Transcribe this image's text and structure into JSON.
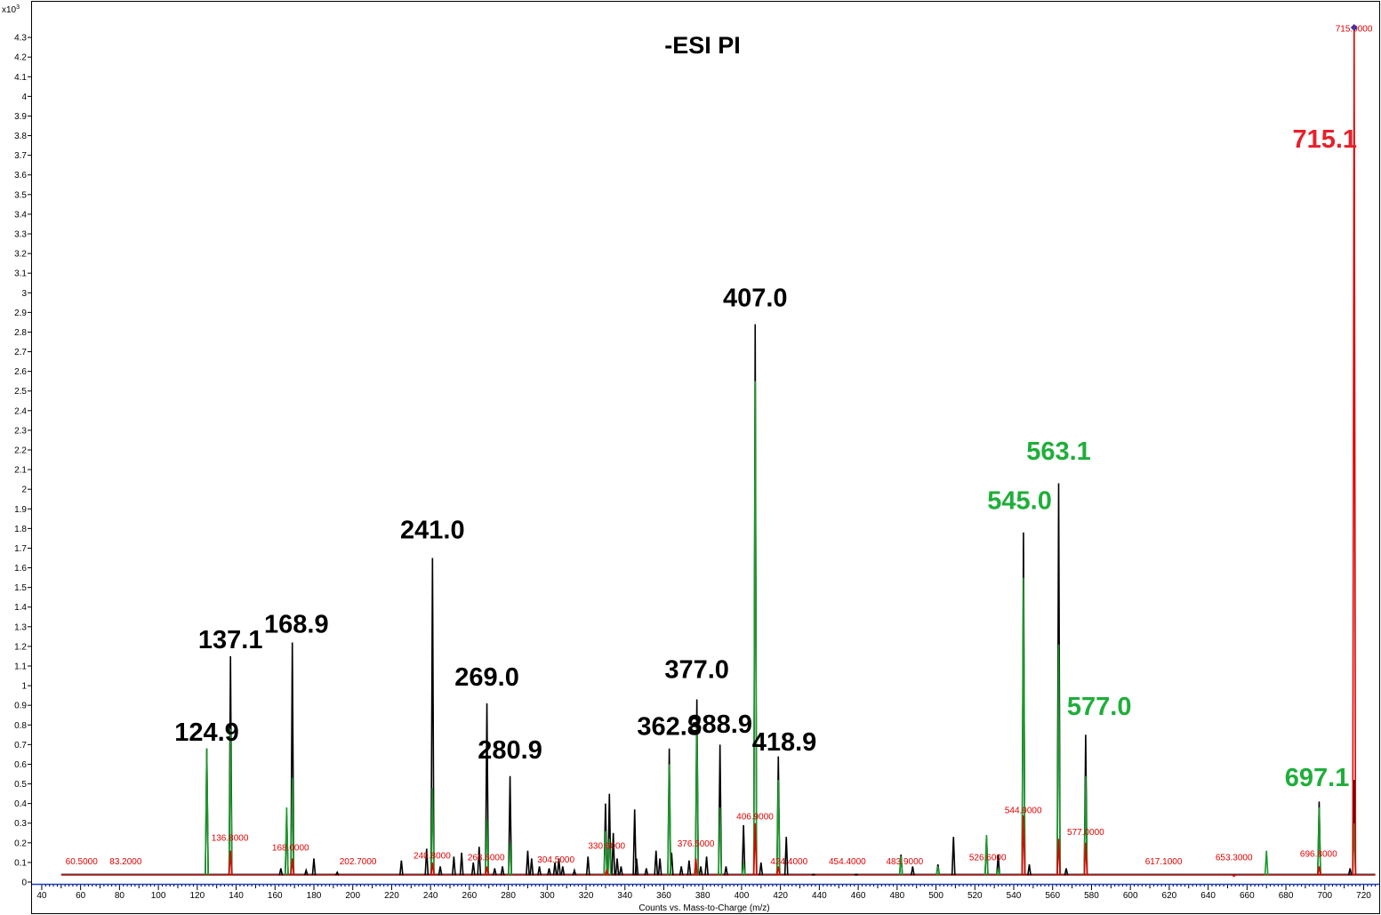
{
  "chart_data": {
    "type": "line",
    "title": "-ESI PI",
    "xlabel": "Counts vs. Mass-to-Charge (m/z)",
    "y_exponent_label": "x10",
    "y_exponent_power": "3",
    "xlim": [
      35,
      728
    ],
    "ylim": [
      0,
      4.4
    ],
    "x_ticks": [
      40,
      60,
      80,
      100,
      120,
      140,
      160,
      180,
      200,
      220,
      240,
      260,
      280,
      300,
      320,
      340,
      360,
      380,
      400,
      420,
      440,
      460,
      480,
      500,
      520,
      540,
      560,
      580,
      600,
      620,
      640,
      660,
      680,
      700,
      720
    ],
    "y_ticks": [
      0,
      0.1,
      0.2,
      0.3,
      0.4,
      0.5,
      0.6,
      0.7,
      0.8,
      0.9,
      1,
      1.1,
      1.2,
      1.3,
      1.4,
      1.5,
      1.6,
      1.7,
      1.8,
      1.9,
      2,
      2.1,
      2.2,
      2.3,
      2.4,
      2.5,
      2.6,
      2.7,
      2.8,
      2.9,
      3,
      3.1,
      3.2,
      3.3,
      3.4,
      3.5,
      3.6,
      3.7,
      3.8,
      3.9,
      4,
      4.1,
      4.2,
      4.3
    ],
    "series": [
      {
        "color": "#000000",
        "peaks": [
          [
            124.9,
            0.68
          ],
          [
            137.1,
            1.15
          ],
          [
            163,
            0.07
          ],
          [
            166,
            0.34
          ],
          [
            168.9,
            1.22
          ],
          [
            176,
            0.06
          ],
          [
            180,
            0.12
          ],
          [
            192,
            0.05
          ],
          [
            225,
            0.11
          ],
          [
            238,
            0.17
          ],
          [
            241,
            1.65
          ],
          [
            245,
            0.08
          ],
          [
            252,
            0.13
          ],
          [
            256,
            0.15
          ],
          [
            262,
            0.1
          ],
          [
            265,
            0.18
          ],
          [
            269,
            0.91
          ],
          [
            273,
            0.07
          ],
          [
            277,
            0.08
          ],
          [
            280.9,
            0.54
          ],
          [
            290,
            0.16
          ],
          [
            292,
            0.12
          ],
          [
            296,
            0.08
          ],
          [
            301,
            0.07
          ],
          [
            304,
            0.1
          ],
          [
            306,
            0.12
          ],
          [
            308,
            0.08
          ],
          [
            314,
            0.06
          ],
          [
            321,
            0.13
          ],
          [
            330,
            0.4
          ],
          [
            332,
            0.45
          ],
          [
            334,
            0.25
          ],
          [
            336,
            0.12
          ],
          [
            338,
            0.08
          ],
          [
            345,
            0.37
          ],
          [
            346,
            0.12
          ],
          [
            351,
            0.07
          ],
          [
            356,
            0.16
          ],
          [
            358,
            0.12
          ],
          [
            362.8,
            0.68
          ],
          [
            364,
            0.15
          ],
          [
            369,
            0.08
          ],
          [
            373,
            0.11
          ],
          [
            377,
            0.93
          ],
          [
            379,
            0.08
          ],
          [
            382,
            0.13
          ],
          [
            388.9,
            0.7
          ],
          [
            392,
            0.08
          ],
          [
            401,
            0.29
          ],
          [
            407,
            2.84
          ],
          [
            410,
            0.1
          ],
          [
            418.9,
            0.64
          ],
          [
            423,
            0.23
          ],
          [
            437,
            0.04
          ],
          [
            459,
            0.04
          ],
          [
            482,
            0.14
          ],
          [
            488,
            0.08
          ],
          [
            501,
            0.09
          ],
          [
            509,
            0.23
          ],
          [
            526,
            0.23
          ],
          [
            532,
            0.14
          ],
          [
            545,
            1.78
          ],
          [
            548,
            0.09
          ],
          [
            563.1,
            2.03
          ],
          [
            567,
            0.07
          ],
          [
            577,
            0.75
          ],
          [
            697.1,
            0.41
          ],
          [
            713,
            0.07
          ],
          [
            715.1,
            0.52
          ]
        ]
      },
      {
        "color": "#1a9a2a",
        "peaks": [
          [
            124.9,
            0.68
          ],
          [
            137.1,
            0.78
          ],
          [
            166,
            0.38
          ],
          [
            168.9,
            0.53
          ],
          [
            241,
            0.48
          ],
          [
            269,
            0.32
          ],
          [
            280.9,
            0.2
          ],
          [
            330,
            0.26
          ],
          [
            332,
            0.22
          ],
          [
            362.8,
            0.6
          ],
          [
            377,
            0.82
          ],
          [
            388.9,
            0.38
          ],
          [
            401,
            0.1
          ],
          [
            407,
            2.55
          ],
          [
            418.9,
            0.52
          ],
          [
            482,
            0.13
          ],
          [
            501,
            0.08
          ],
          [
            526,
            0.24
          ],
          [
            532,
            0.07
          ],
          [
            545,
            1.55
          ],
          [
            563.1,
            1.21
          ],
          [
            577,
            0.54
          ],
          [
            670,
            0.16
          ],
          [
            697.1,
            0.38
          ],
          [
            715.1,
            0.3
          ]
        ]
      },
      {
        "color": "#e00000",
        "peaks": [
          [
            137.1,
            0.16
          ],
          [
            168.9,
            0.12
          ],
          [
            241,
            0.1
          ],
          [
            269,
            0.08
          ],
          [
            330.6,
            0.06
          ],
          [
            376.5,
            0.12
          ],
          [
            407,
            0.3
          ],
          [
            418.9,
            0.08
          ],
          [
            545,
            0.34
          ],
          [
            563.1,
            0.22
          ],
          [
            577,
            0.2
          ],
          [
            653.3,
            0.03
          ],
          [
            697.1,
            0.08
          ],
          [
            715.1,
            4.35
          ]
        ]
      }
    ],
    "small_labels": [
      {
        "x": 60.5,
        "y": 0.09,
        "text": "60.5000"
      },
      {
        "x": 83.2,
        "y": 0.09,
        "text": "83.2000"
      },
      {
        "x": 136.8,
        "y": 0.21,
        "text": "136.8000"
      },
      {
        "x": 168.0,
        "y": 0.16,
        "text": "168.0000"
      },
      {
        "x": 202.7,
        "y": 0.09,
        "text": "202.7000"
      },
      {
        "x": 240.8,
        "y": 0.12,
        "text": "240.8000"
      },
      {
        "x": 268.6,
        "y": 0.11,
        "text": "268.6000"
      },
      {
        "x": 304.5,
        "y": 0.1,
        "text": "304.5000"
      },
      {
        "x": 330.6,
        "y": 0.17,
        "text": "330.6000"
      },
      {
        "x": 376.5,
        "y": 0.18,
        "text": "376.5000"
      },
      {
        "x": 406.9,
        "y": 0.32,
        "text": "406.9000"
      },
      {
        "x": 424.4,
        "y": 0.09,
        "text": "424.4000"
      },
      {
        "x": 454.4,
        "y": 0.09,
        "text": "454.4000"
      },
      {
        "x": 483.9,
        "y": 0.09,
        "text": "483.9000"
      },
      {
        "x": 526.6,
        "y": 0.11,
        "text": "526.6000"
      },
      {
        "x": 544.9,
        "y": 0.35,
        "text": "544.9000"
      },
      {
        "x": 577.0,
        "y": 0.24,
        "text": "577.0000"
      },
      {
        "x": 617.1,
        "y": 0.09,
        "text": "617.1000"
      },
      {
        "x": 653.3,
        "y": 0.11,
        "text": "653.3000"
      },
      {
        "x": 696.8,
        "y": 0.13,
        "text": "696.8000"
      },
      {
        "x": 715.0,
        "y": 4.33,
        "text": "715.0000"
      }
    ],
    "big_labels": [
      {
        "x": 124.9,
        "y": 0.72,
        "text": "124.9",
        "color": "#000000"
      },
      {
        "x": 137.1,
        "y": 1.19,
        "text": "137.1",
        "color": "#000000"
      },
      {
        "x": 171,
        "y": 1.27,
        "text": "168.9",
        "color": "#000000"
      },
      {
        "x": 241,
        "y": 1.75,
        "text": "241.0",
        "color": "#000000"
      },
      {
        "x": 269,
        "y": 1.0,
        "text": "269.0",
        "color": "#000000"
      },
      {
        "x": 280.9,
        "y": 0.63,
        "text": "280.9",
        "color": "#000000"
      },
      {
        "x": 362.8,
        "y": 0.75,
        "text": "362.8",
        "color": "#000000"
      },
      {
        "x": 377,
        "y": 1.04,
        "text": "377.0",
        "color": "#000000"
      },
      {
        "x": 388.9,
        "y": 0.76,
        "text": "388.9",
        "color": "#000000"
      },
      {
        "x": 407,
        "y": 2.93,
        "text": "407.0",
        "color": "#000000"
      },
      {
        "x": 422,
        "y": 0.67,
        "text": "418.9",
        "color": "#000000"
      },
      {
        "x": 543,
        "y": 1.9,
        "text": "545.0",
        "color": "#1fae3a"
      },
      {
        "x": 563.1,
        "y": 2.15,
        "text": "563.1",
        "color": "#1fae3a"
      },
      {
        "x": 584,
        "y": 0.85,
        "text": "577.0",
        "color": "#1fae3a"
      },
      {
        "x": 696,
        "y": 0.49,
        "text": "697.1",
        "color": "#1fae3a"
      },
      {
        "x": 700,
        "y": 3.74,
        "text": "715.1",
        "color": "#e8202a"
      }
    ],
    "marker": {
      "x": 715.1,
      "y": 4.35,
      "color": "#1a3fd0"
    },
    "grid": false,
    "legend": "none"
  }
}
